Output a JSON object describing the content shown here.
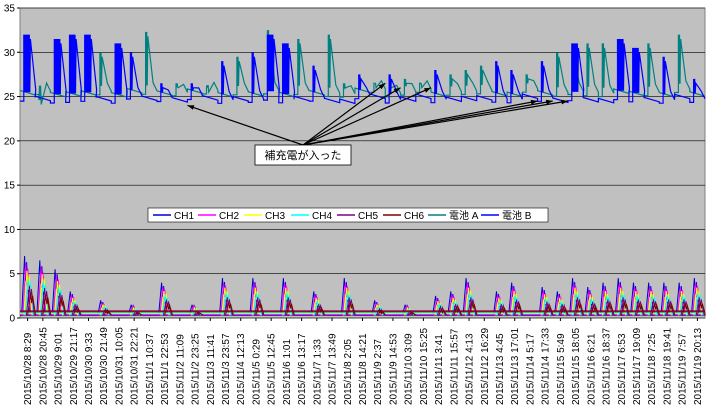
{
  "chart_data": {
    "type": "line",
    "ylim": [
      0,
      35
    ],
    "yticks": [
      "0",
      "5",
      "10",
      "15",
      "20",
      "25",
      "30",
      "35"
    ],
    "plot_background": "#c0c0c0",
    "grid": "horizontal",
    "categories": [
      "2015/10/28 8:29",
      "2015/10/28 20:45",
      "2015/10/29 9:01",
      "2015/10/29 21:17",
      "2015/10/30 9:33",
      "2015/10/30 21:49",
      "2015/10/31 10:05",
      "2015/10/31 22:21",
      "2015/11/1 10:37",
      "2015/11/1 22:53",
      "2015/11/2 11:09",
      "2015/11/2 23:25",
      "2015/11/3 11:41",
      "2015/11/3 23:57",
      "2015/11/4 12:13",
      "2015/11/5 0:29",
      "2015/11/5 12:45",
      "2015/11/6 1:01",
      "2015/11/6 13:17",
      "2015/11/7 1:33",
      "2015/11/7 13:49",
      "2015/11/8 2:05",
      "2015/11/8 14:21",
      "2015/11/9 2:37",
      "2015/11/9 14:53",
      "2015/11/10 3:09",
      "2015/11/10 15:25",
      "2015/11/11 3:41",
      "2015/11/11 15:57",
      "2015/11/12 4:13",
      "2015/11/12 16:29",
      "2015/11/13 4:45",
      "2015/11/13 17:01",
      "2015/11/14 5:17",
      "2015/11/14 17:33",
      "2015/11/15 5:49",
      "2015/11/15 18:05",
      "2015/11/16 6:21",
      "2015/11/16 18:37",
      "2015/11/17 6:53",
      "2015/11/17 19:09",
      "2015/11/18 7:25",
      "2015/11/18 19:41",
      "2015/11/19 7:57",
      "2015/11/19 20:13"
    ],
    "legend_position": "middle",
    "series": [
      {
        "name": "CH1",
        "color": "#0000cc"
      },
      {
        "name": "CH2",
        "color": "#ff00ff"
      },
      {
        "name": "CH3",
        "color": "#ffff00"
      },
      {
        "name": "CH4",
        "color": "#00ffff"
      },
      {
        "name": "CH5",
        "color": "#800080"
      },
      {
        "name": "CH6",
        "color": "#800000"
      },
      {
        "name": "電池 A",
        "color": "#008080"
      },
      {
        "name": "電池 B",
        "color": "#0000ff"
      }
    ],
    "battery_a": {
      "baseline": 25.2,
      "peaks": [
        [
          1,
          24.6
        ],
        [
          5,
          30.0
        ],
        [
          8,
          32.3
        ],
        [
          10,
          26.5
        ],
        [
          12,
          26.0
        ],
        [
          14,
          29.5
        ],
        [
          16,
          32.5
        ],
        [
          18,
          31.5
        ],
        [
          20,
          32.0
        ],
        [
          21,
          26.5
        ],
        [
          23,
          26.5
        ],
        [
          24,
          26.5
        ],
        [
          25,
          27.0
        ],
        [
          26,
          26.5
        ],
        [
          28,
          27.5
        ],
        [
          29,
          28.0
        ],
        [
          30,
          28.5
        ],
        [
          33,
          27.5
        ],
        [
          35,
          30.0
        ],
        [
          36,
          30.0
        ],
        [
          37,
          31.0
        ],
        [
          38,
          31.0
        ],
        [
          41,
          31.0
        ],
        [
          43,
          32.0
        ]
      ]
    },
    "battery_b": {
      "baseline": 24.5,
      "peaks": [
        [
          0,
          32.0
        ],
        [
          2,
          31.5
        ],
        [
          3,
          32.0
        ],
        [
          4,
          32.0
        ],
        [
          6,
          31.0
        ],
        [
          7,
          30.0
        ],
        [
          9,
          26.5
        ],
        [
          11,
          26.5
        ],
        [
          13,
          29.0
        ],
        [
          15,
          30.0
        ],
        [
          16,
          32.0
        ],
        [
          17,
          31.0
        ],
        [
          19,
          28.5
        ],
        [
          22,
          27.5
        ],
        [
          24,
          27.5
        ],
        [
          27,
          28.0
        ],
        [
          31,
          29.0
        ],
        [
          32,
          28.0
        ],
        [
          34,
          29.0
        ],
        [
          36,
          31.0
        ],
        [
          39,
          31.5
        ],
        [
          40,
          30.5
        ],
        [
          42,
          29.5
        ],
        [
          44,
          27.0
        ]
      ]
    },
    "channel_spikes": [
      [
        0,
        7.0
      ],
      [
        1,
        6.5
      ],
      [
        2,
        5.5
      ],
      [
        3,
        3.0
      ],
      [
        5,
        2.0
      ],
      [
        7,
        1.5
      ],
      [
        9,
        4.0
      ],
      [
        11,
        1.5
      ],
      [
        13,
        4.5
      ],
      [
        15,
        4.5
      ],
      [
        17,
        4.5
      ],
      [
        19,
        3.0
      ],
      [
        21,
        4.5
      ],
      [
        23,
        2.0
      ],
      [
        25,
        1.5
      ],
      [
        27,
        2.5
      ],
      [
        28,
        3.0
      ],
      [
        29,
        4.5
      ],
      [
        31,
        3.0
      ],
      [
        32,
        4.0
      ],
      [
        34,
        3.5
      ],
      [
        35,
        3.0
      ],
      [
        36,
        4.5
      ],
      [
        37,
        3.5
      ],
      [
        38,
        4.0
      ],
      [
        39,
        4.5
      ],
      [
        40,
        4.0
      ],
      [
        41,
        4.0
      ],
      [
        42,
        4.0
      ],
      [
        43,
        4.0
      ],
      [
        44,
        4.5
      ]
    ],
    "annotation": "補充電が入った",
    "annotation_targets": [
      [
        10.5,
        24.0
      ],
      [
        23.5,
        26.5
      ],
      [
        24.5,
        26.0
      ],
      [
        26.5,
        26.0
      ],
      [
        33.5,
        24.5
      ],
      [
        34.5,
        24.5
      ],
      [
        35.5,
        24.5
      ]
    ]
  }
}
